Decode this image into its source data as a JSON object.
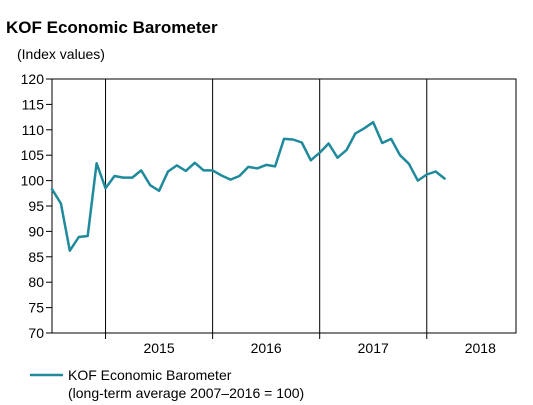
{
  "chart_data": {
    "type": "line",
    "title": "KOF Economic Barometer",
    "subtitle": "(Index values)",
    "xlabel": "",
    "ylabel": "",
    "ylim": [
      70,
      120
    ],
    "y_ticks": [
      70,
      75,
      80,
      85,
      90,
      95,
      100,
      105,
      110,
      115,
      120
    ],
    "x_ticks": [
      "2015",
      "2016",
      "2017",
      "2018"
    ],
    "grid": "vertical lines at year boundaries",
    "legend": {
      "position": "bottom-left",
      "line1": "KOF Economic Barometer",
      "line2": "(long-term average 2007–2016 = 100)"
    },
    "colors": {
      "series": "#1f8a9c",
      "axis": "#000000"
    },
    "series": [
      {
        "name": "KOF Economic Barometer",
        "x": [
          "2014-07",
          "2014-08",
          "2014-09",
          "2014-10",
          "2014-11",
          "2014-12",
          "2015-01",
          "2015-02",
          "2015-03",
          "2015-04",
          "2015-05",
          "2015-06",
          "2015-07",
          "2015-08",
          "2015-09",
          "2015-10",
          "2015-11",
          "2015-12",
          "2016-01",
          "2016-02",
          "2016-03",
          "2016-04",
          "2016-05",
          "2016-06",
          "2016-07",
          "2016-08",
          "2016-09",
          "2016-10",
          "2016-11",
          "2016-12",
          "2017-01",
          "2017-02",
          "2017-03",
          "2017-04",
          "2017-05",
          "2017-06",
          "2017-07",
          "2017-08",
          "2017-09",
          "2017-10",
          "2017-11",
          "2017-12",
          "2018-01",
          "2018-02",
          "2018-03"
        ],
        "values": [
          98.3,
          95.5,
          86.2,
          88.9,
          89.1,
          103.4,
          98.5,
          100.9,
          100.6,
          100.6,
          102.0,
          99.1,
          98.0,
          101.8,
          103.0,
          101.9,
          103.5,
          102.0,
          102.0,
          101.0,
          100.2,
          100.9,
          102.7,
          102.4,
          103.1,
          102.8,
          108.2,
          108.1,
          107.5,
          104.0,
          105.5,
          107.3,
          104.5,
          106.0,
          109.3,
          110.3,
          111.5,
          107.4,
          108.2,
          105.0,
          103.3,
          100.0,
          101.2,
          101.8,
          100.4
        ]
      }
    ]
  }
}
